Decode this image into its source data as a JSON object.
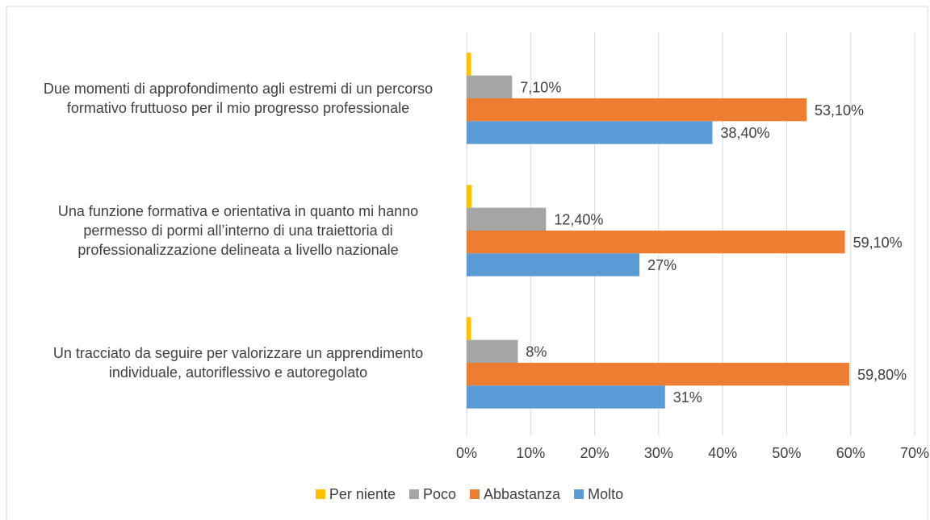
{
  "chart_data": {
    "type": "bar",
    "orientation": "horizontal",
    "categories": [
      "Due momenti di approfondimento agli estremi di un percorso formativo fruttuoso per il mio progresso professionale",
      "Una funzione formativa e orientativa in quanto mi hanno permesso di pormi all’interno di una traiettoria di professionalizzazione delineata a livello nazionale",
      "Un tracciato da seguire per valorizzare un apprendimento individuale, autoriflessivo e autoregolato"
    ],
    "series": [
      {
        "name": "Per niente",
        "color": "#ffc000",
        "values": [
          0.7,
          0.8,
          0.7
        ]
      },
      {
        "name": "Poco",
        "color": "#a5a5a5",
        "values": [
          7.1,
          12.4,
          8
        ],
        "value_labels": [
          "7,10%",
          "12,40%",
          "8%"
        ]
      },
      {
        "name": "Abbastanza",
        "color": "#ed7d31",
        "values": [
          53.1,
          59.1,
          59.8
        ],
        "value_labels": [
          "53,10%",
          "59,10%",
          "59,80%"
        ]
      },
      {
        "name": "Molto",
        "color": "#5b9bd5",
        "values": [
          38.4,
          27,
          31
        ],
        "value_labels": [
          "38,40%",
          "27%",
          "31%"
        ]
      }
    ],
    "xlim": [
      0,
      70
    ],
    "xticks": [
      {
        "value": 0,
        "label": "0%"
      },
      {
        "value": 10,
        "label": "10%"
      },
      {
        "value": 20,
        "label": "20%"
      },
      {
        "value": 30,
        "label": "30%"
      },
      {
        "value": 40,
        "label": "40%"
      },
      {
        "value": 50,
        "label": "50%"
      },
      {
        "value": 60,
        "label": "60%"
      },
      {
        "value": 70,
        "label": "70%"
      }
    ],
    "grid": true,
    "legend": "bottom"
  }
}
